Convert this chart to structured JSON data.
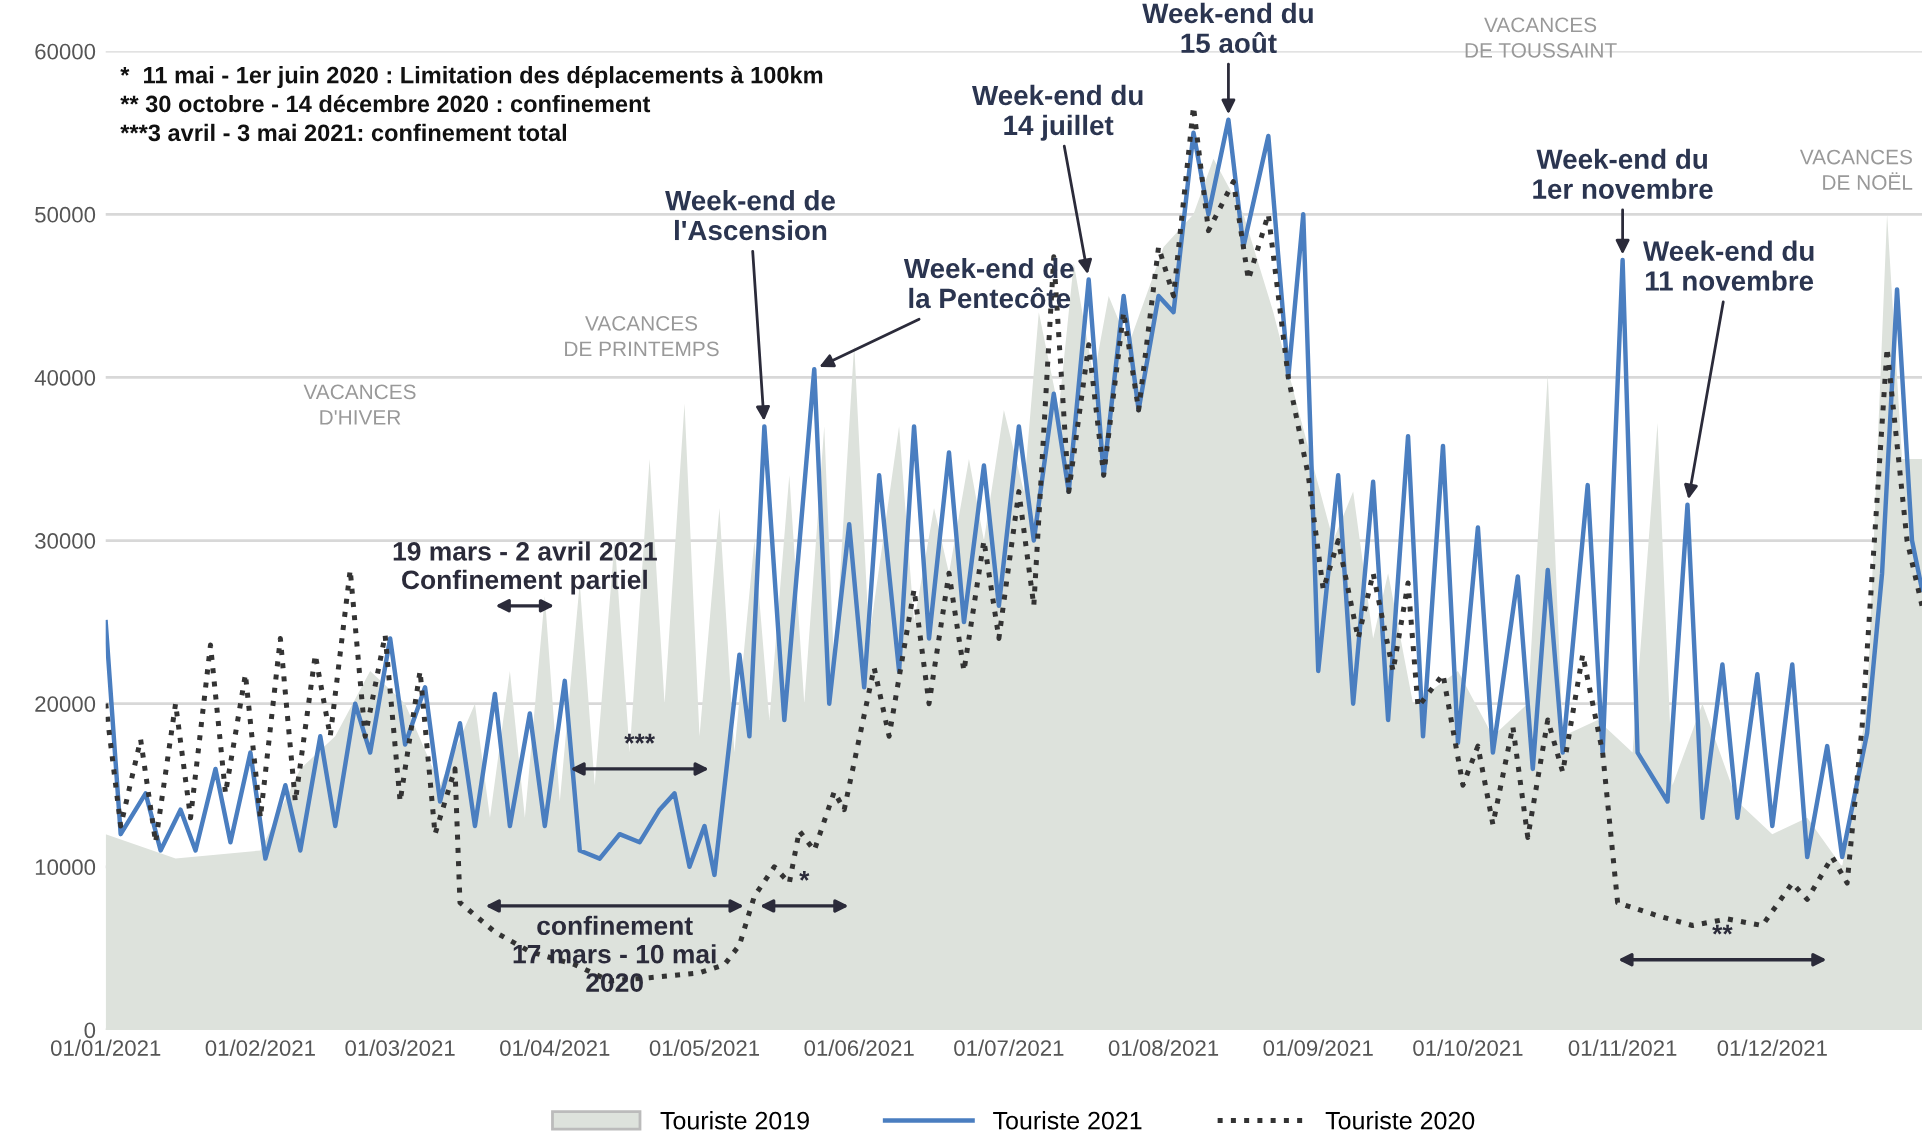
{
  "chart_data": {
    "type": "line",
    "series": [
      {
        "name": "Touriste 2019",
        "type": "area",
        "color": "#dde2dc",
        "x": [
          "2021-01-01",
          "2021-01-15",
          "2021-02-01",
          "2021-02-09",
          "2021-02-16",
          "2021-02-23",
          "2021-03-02",
          "2021-03-09",
          "2021-03-16",
          "2021-03-19",
          "2021-03-23",
          "2021-03-26",
          "2021-03-30",
          "2021-04-02",
          "2021-04-06",
          "2021-04-09",
          "2021-04-13",
          "2021-04-16",
          "2021-04-20",
          "2021-04-23",
          "2021-04-27",
          "2021-04-30",
          "2021-05-04",
          "2021-05-07",
          "2021-05-11",
          "2021-05-14",
          "2021-05-18",
          "2021-05-21",
          "2021-05-25",
          "2021-05-27",
          "2021-05-31",
          "2021-06-03",
          "2021-06-09",
          "2021-06-12",
          "2021-06-16",
          "2021-06-19",
          "2021-06-23",
          "2021-06-26",
          "2021-06-30",
          "2021-07-04",
          "2021-07-07",
          "2021-07-11",
          "2021-07-14",
          "2021-07-18",
          "2021-07-21",
          "2021-07-25",
          "2021-08-01",
          "2021-08-07",
          "2021-08-11",
          "2021-08-17",
          "2021-08-23",
          "2021-08-28",
          "2021-09-04",
          "2021-09-08",
          "2021-09-12",
          "2021-09-15",
          "2021-09-20",
          "2021-09-29",
          "2021-10-06",
          "2021-10-13",
          "2021-10-17",
          "2021-10-20",
          "2021-10-27",
          "2021-11-03",
          "2021-11-08",
          "2021-11-11",
          "2021-11-17",
          "2021-11-24",
          "2021-12-01",
          "2021-12-08",
          "2021-12-15",
          "2021-12-20",
          "2021-12-24",
          "2021-12-27",
          "2021-12-31"
        ],
        "values": [
          12000,
          10500,
          11000,
          16000,
          18000,
          22000,
          20000,
          15000,
          20000,
          13000,
          22000,
          13000,
          26600,
          14000,
          27400,
          15000,
          30000,
          17000,
          35000,
          20000,
          38400,
          18000,
          32000,
          17000,
          30000,
          19000,
          34000,
          20000,
          37000,
          22000,
          42000,
          24000,
          37000,
          25000,
          32000,
          28000,
          35000,
          30000,
          38000,
          33000,
          44000,
          38000,
          47000,
          40000,
          45000,
          42000,
          48000,
          50000,
          53400,
          50000,
          44000,
          38000,
          30000,
          33000,
          24000,
          28000,
          20000,
          22000,
          18000,
          20000,
          40200,
          18000,
          19000,
          17000,
          37200,
          15000,
          20000,
          14000,
          12000,
          13000,
          10000,
          20000,
          50000,
          35000,
          35000
        ]
      },
      {
        "name": "Touriste 2021",
        "color": "#4a7ec0",
        "line_style": "solid",
        "x": [
          "2021-01-01",
          "2021-01-04",
          "2021-01-09",
          "2021-01-12",
          "2021-01-16",
          "2021-01-19",
          "2021-01-23",
          "2021-01-26",
          "2021-01-30",
          "2021-02-02",
          "2021-02-06",
          "2021-02-09",
          "2021-02-13",
          "2021-02-16",
          "2021-02-20",
          "2021-02-23",
          "2021-02-27",
          "2021-03-02",
          "2021-03-06",
          "2021-03-09",
          "2021-03-13",
          "2021-03-16",
          "2021-03-20",
          "2021-03-23",
          "2021-03-27",
          "2021-03-30",
          "2021-04-03",
          "2021-04-06",
          "2021-04-10",
          "2021-04-14",
          "2021-04-18",
          "2021-04-22",
          "2021-04-25",
          "2021-04-28",
          "2021-05-01",
          "2021-05-03",
          "2021-05-08",
          "2021-05-10",
          "2021-05-13",
          "2021-05-17",
          "2021-05-23",
          "2021-05-26",
          "2021-05-30",
          "2021-06-02",
          "2021-06-05",
          "2021-06-09",
          "2021-06-12",
          "2021-06-15",
          "2021-06-19",
          "2021-06-22",
          "2021-06-26",
          "2021-06-29",
          "2021-07-03",
          "2021-07-06",
          "2021-07-10",
          "2021-07-13",
          "2021-07-17",
          "2021-07-20",
          "2021-07-24",
          "2021-07-27",
          "2021-07-31",
          "2021-08-03",
          "2021-08-07",
          "2021-08-10",
          "2021-08-14",
          "2021-08-17",
          "2021-08-22",
          "2021-08-26",
          "2021-08-29",
          "2021-09-01",
          "2021-09-05",
          "2021-09-08",
          "2021-09-12",
          "2021-09-15",
          "2021-09-19",
          "2021-09-22",
          "2021-09-26",
          "2021-09-29",
          "2021-10-03",
          "2021-10-06",
          "2021-10-11",
          "2021-10-14",
          "2021-10-17",
          "2021-10-20",
          "2021-10-25",
          "2021-10-28",
          "2021-11-01",
          "2021-11-04",
          "2021-11-10",
          "2021-11-14",
          "2021-11-17",
          "2021-11-21",
          "2021-11-24",
          "2021-11-28",
          "2021-12-01",
          "2021-12-05",
          "2021-12-08",
          "2021-12-12",
          "2021-12-15",
          "2021-12-20",
          "2021-12-23",
          "2021-12-26",
          "2021-12-29",
          "2021-12-31"
        ],
        "values": [
          25000,
          12000,
          14500,
          11000,
          13500,
          11000,
          16000,
          11500,
          17000,
          10500,
          15000,
          11000,
          18000,
          12500,
          20000,
          17000,
          24000,
          17500,
          21000,
          14000,
          18800,
          12500,
          20600,
          12500,
          19400,
          12500,
          21400,
          11000,
          10500,
          12000,
          11500,
          13500,
          14500,
          10000,
          12500,
          9500,
          23000,
          18000,
          37000,
          19000,
          40500,
          20000,
          31000,
          21000,
          34000,
          22000,
          37000,
          24000,
          35400,
          25000,
          34600,
          26000,
          37000,
          30000,
          39000,
          33000,
          46000,
          34000,
          45000,
          38000,
          45000,
          44000,
          55000,
          50000,
          55800,
          48000,
          54800,
          40000,
          50000,
          22000,
          34000,
          20000,
          33600,
          19000,
          36400,
          18000,
          35800,
          17600,
          30800,
          17000,
          27800,
          16000,
          28200,
          17000,
          33400,
          17000,
          47200,
          17000,
          14000,
          32200,
          13000,
          22400,
          13000,
          21800,
          12500,
          22400,
          10600,
          17400,
          10600,
          18200,
          28000,
          45400,
          30000,
          27000
        ]
      },
      {
        "name": "Touriste 2020",
        "color": "#333333",
        "line_style": "dotted",
        "x": [
          "2021-01-01",
          "2021-01-04",
          "2021-01-08",
          "2021-01-11",
          "2021-01-15",
          "2021-01-18",
          "2021-01-22",
          "2021-01-25",
          "2021-01-29",
          "2021-02-01",
          "2021-02-05",
          "2021-02-08",
          "2021-02-12",
          "2021-02-15",
          "2021-02-19",
          "2021-02-22",
          "2021-02-26",
          "2021-03-01",
          "2021-03-05",
          "2021-03-08",
          "2021-03-12",
          "2021-03-13",
          "2021-03-20",
          "2021-03-27",
          "2021-04-05",
          "2021-04-12",
          "2021-04-20",
          "2021-04-30",
          "2021-05-05",
          "2021-05-08",
          "2021-05-11",
          "2021-05-15",
          "2021-05-18",
          "2021-05-20",
          "2021-05-23",
          "2021-05-27",
          "2021-05-29",
          "2021-06-04",
          "2021-06-07",
          "2021-06-12",
          "2021-06-15",
          "2021-06-19",
          "2021-06-22",
          "2021-06-26",
          "2021-06-29",
          "2021-07-03",
          "2021-07-06",
          "2021-07-10",
          "2021-07-13",
          "2021-07-17",
          "2021-07-20",
          "2021-07-24",
          "2021-07-27",
          "2021-07-31",
          "2021-08-03",
          "2021-08-07",
          "2021-08-10",
          "2021-08-15",
          "2021-08-18",
          "2021-08-22",
          "2021-08-26",
          "2021-08-30",
          "2021-09-02",
          "2021-09-05",
          "2021-09-09",
          "2021-09-12",
          "2021-09-16",
          "2021-09-19",
          "2021-09-21",
          "2021-09-26",
          "2021-09-30",
          "2021-10-03",
          "2021-10-06",
          "2021-10-10",
          "2021-10-13",
          "2021-10-17",
          "2021-10-20",
          "2021-10-24",
          "2021-10-28",
          "2021-10-31",
          "2021-11-08",
          "2021-11-15",
          "2021-11-22",
          "2021-11-29",
          "2021-12-05",
          "2021-12-08",
          "2021-12-13",
          "2021-12-16",
          "2021-12-19",
          "2021-12-24",
          "2021-12-28",
          "2021-12-31"
        ],
        "values": [
          20000,
          12500,
          17800,
          11500,
          20000,
          13000,
          23600,
          14500,
          21800,
          13000,
          24000,
          14000,
          23000,
          18000,
          28200,
          18000,
          24200,
          14000,
          22000,
          12000,
          16000,
          7800,
          6000,
          4800,
          4000,
          3000,
          3200,
          3500,
          4000,
          5200,
          8200,
          10000,
          9000,
          12200,
          11000,
          14600,
          13500,
          22200,
          18000,
          27000,
          20000,
          28000,
          22000,
          30000,
          24000,
          33000,
          26000,
          47400,
          33000,
          42000,
          34000,
          44000,
          38000,
          48000,
          45000,
          56600,
          49000,
          52000,
          46000,
          50000,
          40000,
          34000,
          27000,
          30000,
          24000,
          28000,
          22000,
          27400,
          19800,
          21800,
          15000,
          17400,
          12600,
          18600,
          11800,
          19000,
          15800,
          23000,
          17000,
          7800,
          7000,
          6400,
          6800,
          6400,
          9000,
          8000,
          10600,
          9000,
          18600,
          41800,
          30000,
          26000
        ]
      }
    ],
    "xlim": [
      "2021-01-01",
      "2021-12-31"
    ],
    "xticks": [
      {
        "value": "2021-01-01",
        "label": "01/01/2021"
      },
      {
        "value": "2021-02-01",
        "label": "01/02/2021"
      },
      {
        "value": "2021-03-01",
        "label": "01/03/2021"
      },
      {
        "value": "2021-04-01",
        "label": "01/04/2021"
      },
      {
        "value": "2021-05-01",
        "label": "01/05/2021"
      },
      {
        "value": "2021-06-01",
        "label": "01/06/2021"
      },
      {
        "value": "2021-07-01",
        "label": "01/07/2021"
      },
      {
        "value": "2021-08-01",
        "label": "01/08/2021"
      },
      {
        "value": "2021-09-01",
        "label": "01/09/2021"
      },
      {
        "value": "2021-10-01",
        "label": "01/10/2021"
      },
      {
        "value": "2021-11-01",
        "label": "01/11/2021"
      },
      {
        "value": "2021-12-01",
        "label": "01/12/2021"
      }
    ],
    "ylim": [
      0,
      60000
    ],
    "yticks": [
      0,
      10000,
      20000,
      30000,
      40000,
      50000,
      60000
    ],
    "grid": "y",
    "legend": "bottom",
    "marker": "none",
    "annotations": [
      "*  11 mai - 1er juin 2020 : Limitation des déplacements à 100km\n** 30 octobre - 14 décembre 2020 : confinement\n***3 avril - 3 mai 2021: confinement total",
      "VACANCES\nD'HIVER",
      "VACANCES\nDE PRINTEMPS",
      "VACANCES\nDE TOUSSAINT",
      "VACANCES\nDE NOËL",
      {
        "text": "Week-end de\nl'Ascension",
        "x": "2021-05-13",
        "y": 37000
      },
      {
        "text": "Week-end de\nla Pentecôte",
        "x": "2021-05-23",
        "y": 40500
      },
      {
        "text": "Week-end du\n14 juillet",
        "x": "2021-07-17",
        "y": 46000
      },
      {
        "text": "Week-end du\n15 août",
        "x": "2021-08-14",
        "y": 55800
      },
      {
        "text": "Week-end du\n1er novembre",
        "x": "2021-11-01",
        "y": 47200
      },
      {
        "text": "Week-end du\n11 novembre",
        "x": "2021-11-14",
        "y": 32200
      },
      "19 mars - 2 avril 2021\nConfinement partiel",
      "***",
      "confinement\n17 mars - 10 mai\n2020",
      "*",
      "**"
    ]
  }
}
